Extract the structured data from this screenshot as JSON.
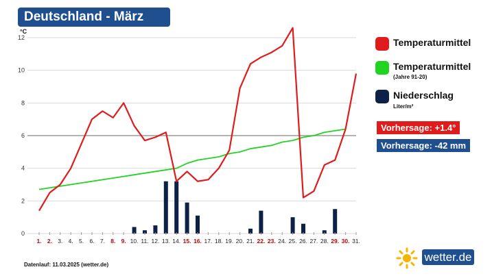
{
  "header": {
    "title": "Deutschland - März"
  },
  "chart_data": {
    "type": "line",
    "y_unit": "°C",
    "ylim": [
      0,
      12
    ],
    "y_ticks": [
      0,
      2,
      4,
      6,
      8,
      10,
      12
    ],
    "categories": [
      "1.",
      "2.",
      "3.",
      "4.",
      "5.",
      "6.",
      "7.",
      "8.",
      "9.",
      "10.",
      "11.",
      "12.",
      "13.",
      "14.",
      "15.",
      "16.",
      "17.",
      "18.",
      "19.",
      "20.",
      "21.",
      "22.",
      "23.",
      "24.",
      "25.",
      "26.",
      "27.",
      "28.",
      "29.",
      "30.",
      "31."
    ],
    "highlighted_categories": [
      "1.",
      "2.",
      "8.",
      "9.",
      "15.",
      "16.",
      "22.",
      "23.",
      "29.",
      "30."
    ],
    "series": [
      {
        "name": "Temperaturmittel",
        "kind": "line",
        "color": "#e01b1b",
        "values": [
          1.4,
          2.5,
          3.0,
          4.0,
          5.5,
          7.0,
          7.5,
          7.1,
          8.0,
          6.6,
          5.7,
          5.9,
          6.2,
          3.2,
          3.8,
          3.2,
          3.3,
          4.0,
          5.1,
          8.9,
          10.4,
          10.8,
          11.1,
          11.5,
          12.6,
          2.2,
          2.6,
          4.2,
          4.5,
          6.4,
          9.8
        ]
      },
      {
        "name": "Temperaturmittel",
        "subtitle": "(Jahre 91-20)",
        "kind": "line",
        "color": "#22d322",
        "values": [
          2.7,
          2.8,
          2.9,
          3.0,
          3.1,
          3.2,
          3.3,
          3.4,
          3.5,
          3.6,
          3.7,
          3.8,
          3.9,
          4.0,
          4.3,
          4.5,
          4.6,
          4.7,
          4.9,
          5.0,
          5.2,
          5.3,
          5.4,
          5.6,
          5.7,
          5.9,
          6.0,
          6.2,
          6.3,
          6.4,
          null
        ]
      },
      {
        "name": "Niederschlag",
        "subtitle": "Liter/m²",
        "kind": "bar",
        "color": "#0d2147",
        "values": [
          0,
          0,
          0,
          0,
          0,
          0,
          0,
          0,
          0,
          0.4,
          0.2,
          0.5,
          3.2,
          3.2,
          1.9,
          1.1,
          0,
          0,
          0,
          0,
          0.3,
          1.4,
          0,
          0,
          1.0,
          0.6,
          0,
          0.2,
          1.5,
          0,
          0
        ]
      }
    ],
    "reference_line": 6,
    "grid": true
  },
  "legend": [
    {
      "label": "Temperaturmittel",
      "sub": "",
      "color": "#e01b1b"
    },
    {
      "label": "Temperaturmittel",
      "sub": "(Jahre 91-20)",
      "color": "#22d322"
    },
    {
      "label": "Niederschlag",
      "sub": "Liter/m²",
      "color": "#0d2147"
    }
  ],
  "forecast": {
    "temp": "Vorhersage: +1.4°",
    "temp_color": "#e01b1b",
    "precip": "Vorhersage: -42 mm",
    "precip_color": "#1f4f8f"
  },
  "footer": {
    "note": "Datenlauf: 11.03.2025 (wetter.de)"
  },
  "logo": {
    "text": "wetter.de",
    "icon": "sun-icon"
  }
}
